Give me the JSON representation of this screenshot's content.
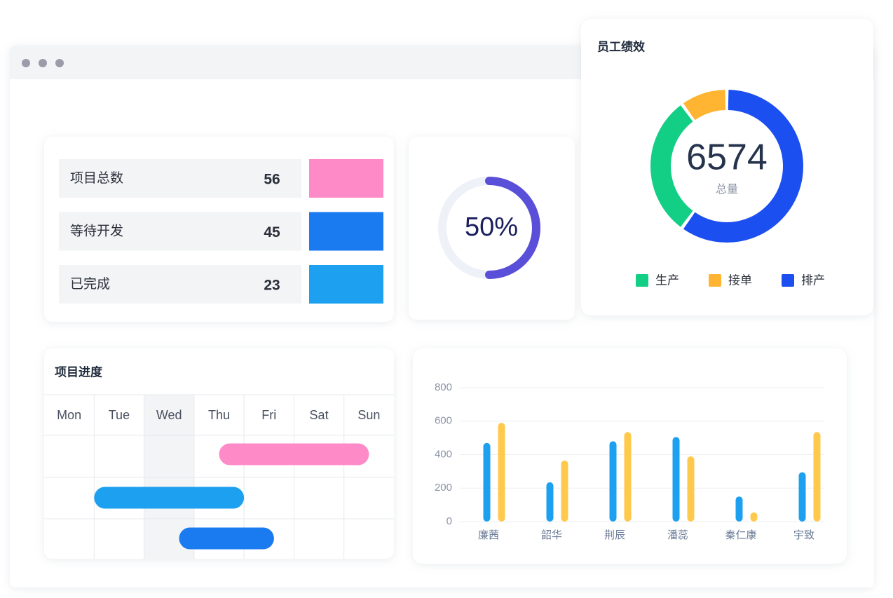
{
  "stats": {
    "rows": [
      {
        "label": "项目总数",
        "value": 56,
        "color": "#ff8ac8"
      },
      {
        "label": "等待开发",
        "value": 45,
        "color": "#1a7af0"
      },
      {
        "label": "已完成",
        "value": 23,
        "color": "#1ea0f0"
      }
    ]
  },
  "chart_data": [
    {
      "type": "ring",
      "values": [
        50
      ],
      "value_labels": [
        "50%"
      ],
      "color": "#5a4fd8"
    },
    {
      "type": "donut",
      "title": "员工绩效",
      "total": 6574,
      "total_label": "总量",
      "categories": [
        "生产",
        "接单",
        "排产"
      ],
      "values": [
        1972,
        657,
        3945
      ],
      "colors": [
        "#13cf86",
        "#ffb531",
        "#1c4ff0"
      ]
    },
    {
      "type": "gantt",
      "title": "项目进度",
      "categories": [
        "Mon",
        "Tue",
        "Wed",
        "Thu",
        "Fri",
        "Sat",
        "Sun"
      ],
      "tasks": [
        {
          "start": 3.5,
          "end": 6.5,
          "color": "#ff8ac8"
        },
        {
          "start": 1,
          "end": 4,
          "color": "#1ea0f0"
        },
        {
          "start": 2.7,
          "end": 4.6,
          "color": "#1a7af0"
        }
      ]
    },
    {
      "type": "bar",
      "categories": [
        "廉茜",
        "韶华",
        "荆辰",
        "潘蕊",
        "秦仁康",
        "宇致"
      ],
      "series": [
        {
          "color": "#1ea0f0",
          "values": [
            470,
            235,
            480,
            505,
            150,
            295
          ]
        },
        {
          "color": "#ffc94d",
          "values": [
            590,
            365,
            535,
            390,
            55,
            535
          ]
        }
      ],
      "ylim": [
        0,
        800
      ],
      "yticks": [
        0,
        200,
        400,
        600,
        800
      ],
      "grid": true
    }
  ]
}
